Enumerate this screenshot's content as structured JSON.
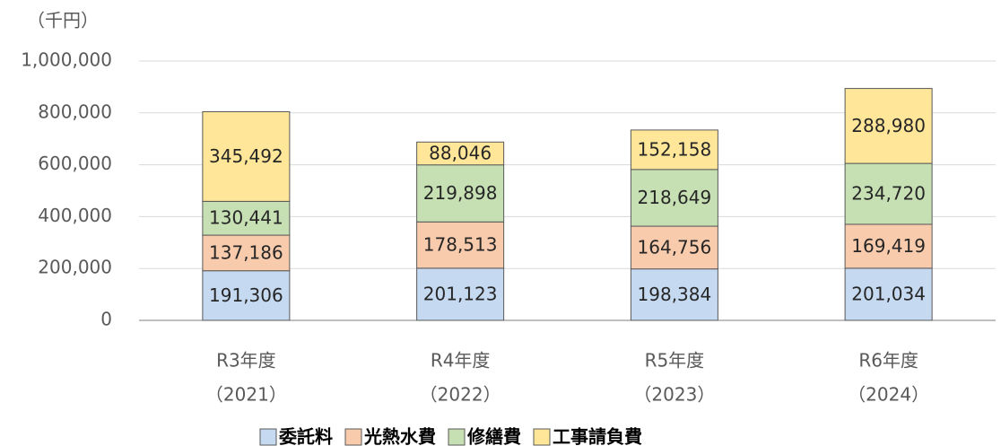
{
  "chart_data": {
    "type": "stacked_bar",
    "y_label": "（千円）",
    "categories": [
      [
        "R3年度",
        "（2021）"
      ],
      [
        "R4年度",
        "（2022）"
      ],
      [
        "R5年度",
        "（2023）"
      ],
      [
        "R6年度",
        "（2024）"
      ]
    ],
    "series": [
      {
        "name": "委託料",
        "color": "#c5d9f1",
        "values": [
          191306,
          201123,
          198384,
          201034
        ],
        "value_labels": [
          "191,306",
          "201,123",
          "198,384",
          "201,034"
        ]
      },
      {
        "name": "光熱水費",
        "color": "#f8cbad",
        "values": [
          137186,
          178513,
          164756,
          169419
        ],
        "value_labels": [
          "137,186",
          "178,513",
          "164,756",
          "169,419"
        ]
      },
      {
        "name": "修繕費",
        "color": "#c6e0b4",
        "values": [
          130441,
          219898,
          218649,
          234720
        ],
        "value_labels": [
          "130,441",
          "219,898",
          "218,649",
          "234,720"
        ]
      },
      {
        "name": "工事請負費",
        "color": "#ffe699",
        "values": [
          345492,
          88046,
          152158,
          288980
        ],
        "value_labels": [
          "345,492",
          "88,046",
          "152,158",
          "288,980"
        ]
      }
    ],
    "ylim": [
      0,
      1000000
    ],
    "yticks": [
      0,
      {
        "value": 200000,
        "label": "200,000"
      },
      {
        "value": 400000,
        "label": "400,000"
      },
      {
        "value": 600000,
        "label": "600,000"
      },
      {
        "value": 800000,
        "label": "800,000"
      },
      {
        "value": 1000000,
        "label": "1,000,000"
      }
    ],
    "grid": true
  }
}
